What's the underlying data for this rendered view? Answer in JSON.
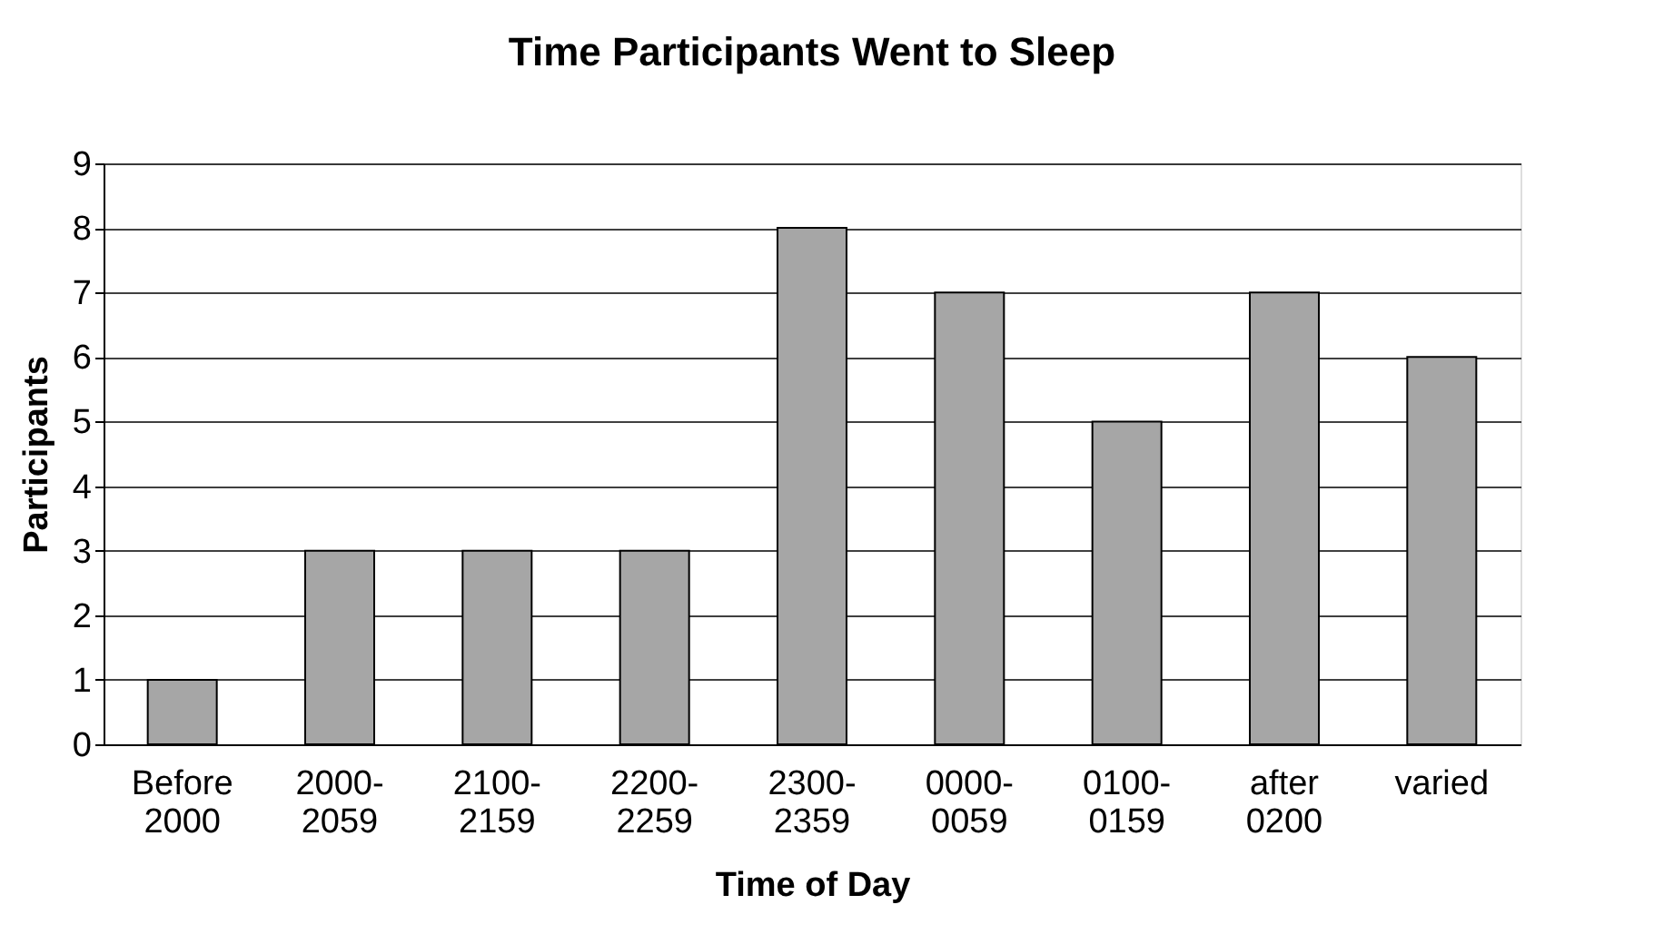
{
  "chart_data": {
    "type": "bar",
    "title": "Time Participants Went to Sleep",
    "xlabel": "Time of Day",
    "ylabel": "Participants",
    "categories": [
      "Before 2000",
      "2000-2059",
      "2100-2159",
      "2200-2259",
      "2300-2359",
      "0000-0059",
      "0100-0159",
      "after 0200",
      "varied"
    ],
    "values": [
      1,
      3,
      3,
      3,
      8,
      7,
      5,
      7,
      6
    ],
    "color": "#a6a6a6",
    "ylim": [
      0,
      9
    ],
    "yticks": [
      0,
      1,
      2,
      3,
      4,
      5,
      6,
      7,
      8,
      9
    ],
    "grid": "y"
  }
}
